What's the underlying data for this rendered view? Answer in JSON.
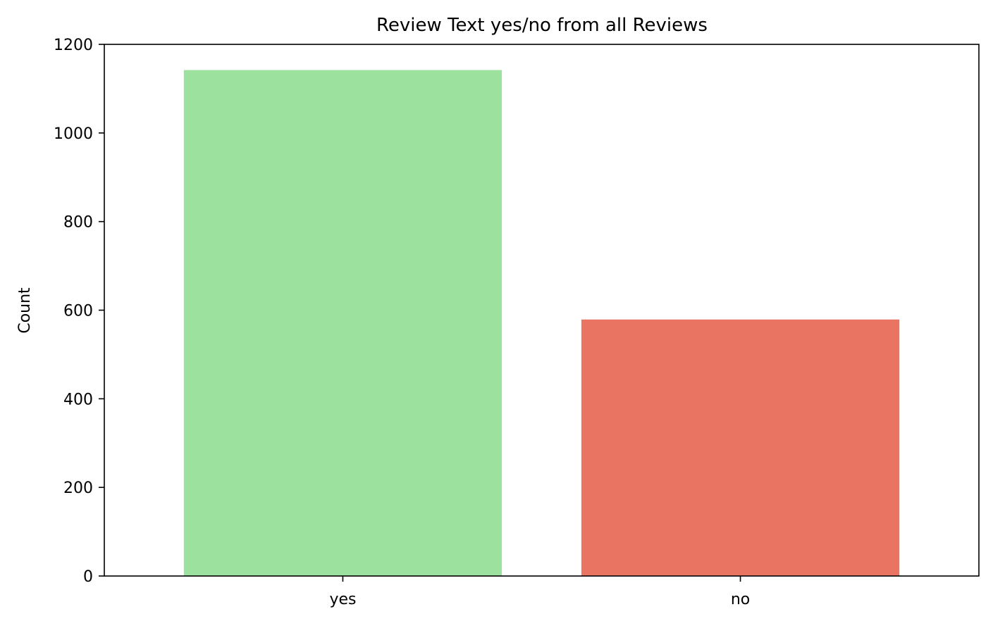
{
  "chart_data": {
    "type": "bar",
    "title": "Review Text yes/no from all Reviews",
    "xlabel": "",
    "ylabel": "Count",
    "categories": [
      "yes",
      "no"
    ],
    "values": [
      1142,
      579
    ],
    "colors": [
      "#9de19e",
      "#e87461"
    ],
    "ylim": [
      0,
      1200
    ],
    "yticks": [
      0,
      200,
      400,
      600,
      800,
      1000,
      1200
    ],
    "grid": false
  }
}
